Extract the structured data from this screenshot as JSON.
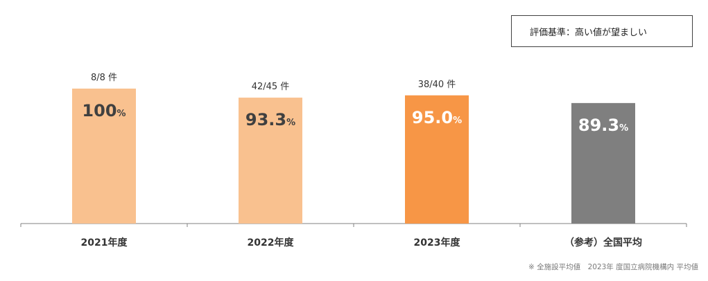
{
  "criteria": {
    "label": "評価基準：高い値が望ましい"
  },
  "footnote": {
    "text": "※ 全施設平均値　2023年 度国立病院機構内 平均値"
  },
  "colors": {
    "bar_light": "#f9c18f",
    "bar_accent": "#f79646",
    "bar_reference": "#7f7f7f",
    "value_text_dark": "#404040",
    "value_text_light": "#ffffff",
    "axis": "#808080"
  },
  "chart_data": {
    "type": "bar",
    "title": "",
    "xlabel": "",
    "ylabel": "",
    "ylim": [
      0,
      100
    ],
    "grid": false,
    "legend": "none",
    "unit": "%",
    "categories": [
      "2021年度",
      "2022年度",
      "2023年度",
      "（参考）全国平均"
    ],
    "values": [
      100,
      93.3,
      95.0,
      89.3
    ],
    "value_labels": [
      "100",
      "93.3",
      "95.0",
      "89.3"
    ],
    "count_labels": [
      "8/8 件",
      "42/45 件",
      "38/40 件",
      ""
    ],
    "bar_colors": [
      "#f9c18f",
      "#f9c18f",
      "#f79646",
      "#7f7f7f"
    ],
    "value_label_colors": [
      "#404040",
      "#404040",
      "#ffffff",
      "#ffffff"
    ]
  }
}
